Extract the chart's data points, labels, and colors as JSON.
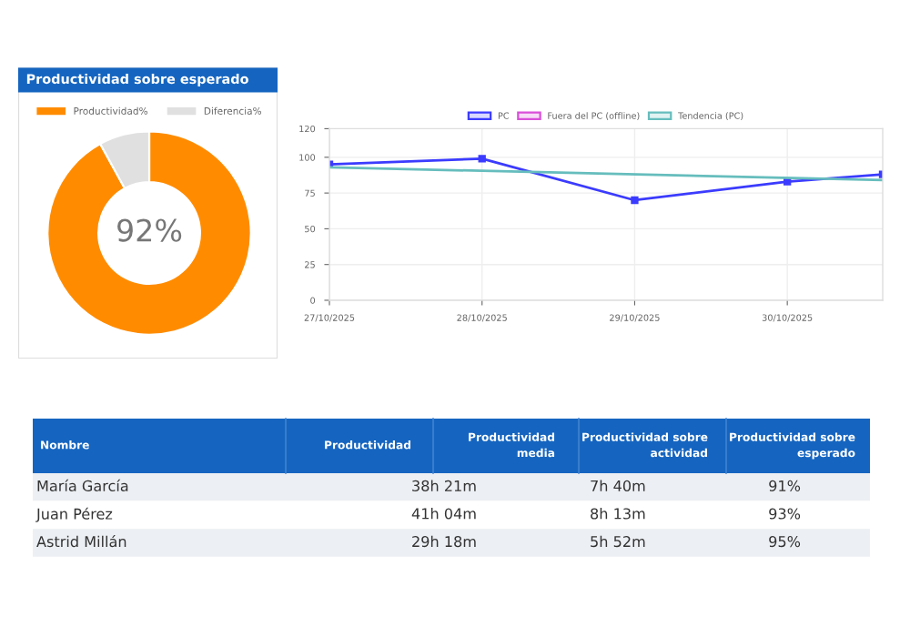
{
  "chart_data": [
    {
      "type": "donut",
      "title": "Productividad sobre esperado",
      "categories": [
        "Productividad%",
        "Diferencia%"
      ],
      "values": [
        92,
        8
      ],
      "colors": [
        "#ff8c00",
        "#e0e0e0"
      ],
      "legend": "top",
      "annotations": [
        "92%"
      ]
    },
    {
      "type": "line",
      "x": [
        "2025-10-27",
        "2025-10-28",
        "2025-10-29",
        "2025-10-30",
        "2025-10-30T15:00"
      ],
      "marker": "square",
      "legend": "top",
      "grid": true,
      "series": [
        {
          "name": "PC",
          "color": "#3b3bff",
          "values": [
            95,
            99,
            70,
            83,
            88
          ]
        },
        {
          "name": "Fuera del PC (offline)",
          "color": "#d94fd9",
          "values": [
            null,
            null,
            null,
            null,
            null
          ]
        },
        {
          "name": "Tendencia (PC)",
          "color": "#66bdbd",
          "marker": "none",
          "x": [
            "2025-10-27",
            "2025-10-30T15:00"
          ],
          "values": [
            93,
            84
          ]
        }
      ],
      "xlim": [
        "2025-10-27",
        "2025-10-30T15:00"
      ],
      "xticks": [
        {
          "value": "2025-10-27",
          "label": "27/10/2025"
        },
        {
          "value": "2025-10-28",
          "label": "28/10/2025"
        },
        {
          "value": "2025-10-29",
          "label": "29/10/2025"
        },
        {
          "value": "2025-10-30",
          "label": "30/10/2025"
        }
      ],
      "ylim": [
        0,
        120
      ],
      "yticks": [
        0,
        25,
        50,
        75,
        100,
        120
      ]
    },
    {
      "type": "other",
      "annotations": [
        "Nombre",
        "Productividad",
        "Productividad\nmedia",
        "Productividad sobre\nactividad",
        "Productividad sobre\nesperado",
        "María García",
        "38h 21m",
        "7h 40m",
        "91%",
        null,
        "Juan Pérez",
        "41h 04m",
        "8h 13m",
        "93%",
        null,
        "Astrid Millán",
        "29h 18m",
        "5h 52m",
        "95%",
        null
      ]
    }
  ]
}
